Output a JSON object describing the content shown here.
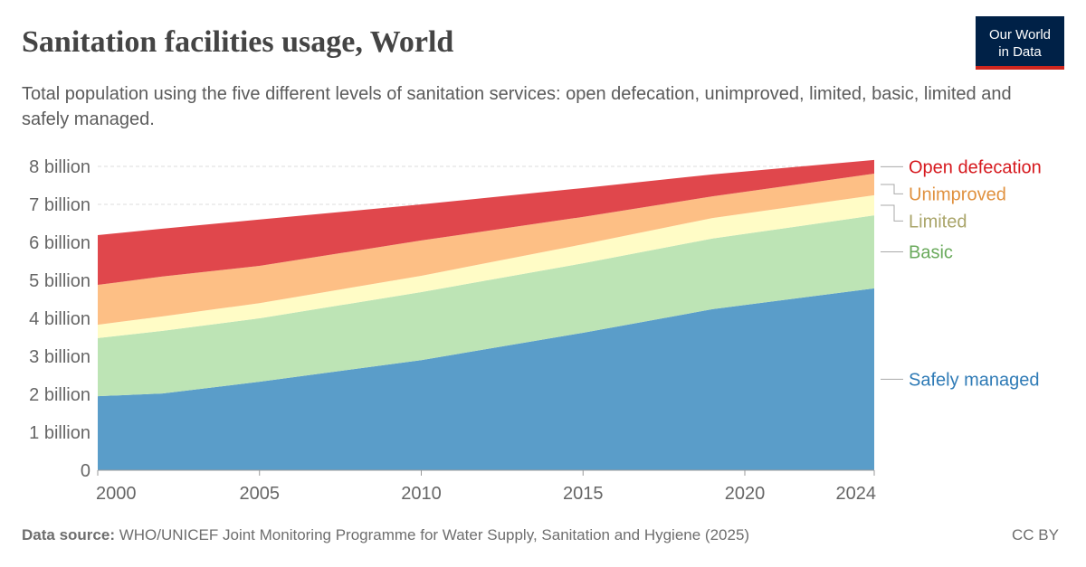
{
  "chart_data": {
    "type": "stacked_area",
    "title": "Sanitation facilities usage, World",
    "subtitle": "Total population using the five different levels of sanitation services: open defecation, unimproved, limited, basic, limited and safely managed.",
    "source_label": "Data source:",
    "source": "WHO/UNICEF Joint Monitoring Programme for Water Supply, Sanitation and Hygiene (2025)",
    "license": "CC BY",
    "logo": [
      "Our World",
      "in Data"
    ],
    "x": [
      2000,
      2002,
      2005,
      2010,
      2015,
      2019,
      2024
    ],
    "xlim": [
      2000,
      2024
    ],
    "xticks": [
      2000,
      2005,
      2010,
      2015,
      2020,
      2024
    ],
    "ylim": [
      0,
      8000000000
    ],
    "yticks": [
      0,
      {
        "value": 1000000000,
        "label": "1 billion"
      },
      {
        "value": 2000000000,
        "label": "2 billion"
      },
      {
        "value": 3000000000,
        "label": "3 billion"
      },
      {
        "value": 4000000000,
        "label": "4 billion"
      },
      {
        "value": 5000000000,
        "label": "5 billion"
      },
      {
        "value": 6000000000,
        "label": "6 billion"
      },
      {
        "value": 7000000000,
        "label": "7 billion"
      },
      {
        "value": 8000000000,
        "label": "8 billion"
      }
    ],
    "grid": true,
    "series": [
      {
        "name": "Safely managed",
        "color": "#5a9dc9",
        "label_color": "#2f7bb6",
        "values": [
          1950000000,
          2020000000,
          2330000000,
          2900000000,
          3620000000,
          4240000000,
          4790000000
        ]
      },
      {
        "name": "Basic",
        "color": "#bde4b5",
        "label_color": "#6aaa5c",
        "values": [
          1530000000,
          1650000000,
          1670000000,
          1790000000,
          1830000000,
          1860000000,
          1920000000
        ]
      },
      {
        "name": "Limited",
        "color": "#fffcc6",
        "label_color": "#aaa56a",
        "values": [
          350000000,
          380000000,
          400000000,
          430000000,
          500000000,
          540000000,
          530000000
        ]
      },
      {
        "name": "Unimproved",
        "color": "#fdbf85",
        "label_color": "#e0913f",
        "values": [
          1050000000,
          1050000000,
          980000000,
          930000000,
          720000000,
          570000000,
          570000000
        ]
      },
      {
        "name": "Open defecation",
        "color": "#e0474c",
        "label_color": "#d6191e",
        "values": [
          1310000000,
          1260000000,
          1220000000,
          950000000,
          760000000,
          580000000,
          360000000
        ]
      }
    ]
  }
}
